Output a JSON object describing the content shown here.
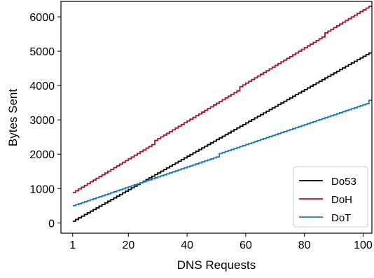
{
  "chart_data": {
    "type": "line",
    "title": "",
    "xlabel": "DNS Requests",
    "ylabel": "Bytes Sent",
    "xlim": [
      -3,
      103
    ],
    "ylim": [
      -300,
      6450
    ],
    "xticks": [
      1,
      20,
      40,
      60,
      80,
      100
    ],
    "yticks": [
      0,
      1000,
      2000,
      3000,
      4000,
      5000,
      6000
    ],
    "grid": false,
    "legend_position": "lower-right",
    "series": [
      {
        "name": "Do53",
        "color": "#000000",
        "start": 50,
        "step": 48.5,
        "jumps": []
      },
      {
        "name": "DoH",
        "color": "#a8122a",
        "start": 886,
        "step": 51.6,
        "jumps": [
          [
            29,
            70
          ],
          [
            58,
            70
          ],
          [
            87,
            70
          ]
        ]
      },
      {
        "name": "DoT",
        "color": "#1f78b4",
        "start": 500,
        "step": 29.0,
        "jumps": [
          [
            51,
            70
          ],
          [
            102,
            70
          ]
        ]
      }
    ]
  }
}
